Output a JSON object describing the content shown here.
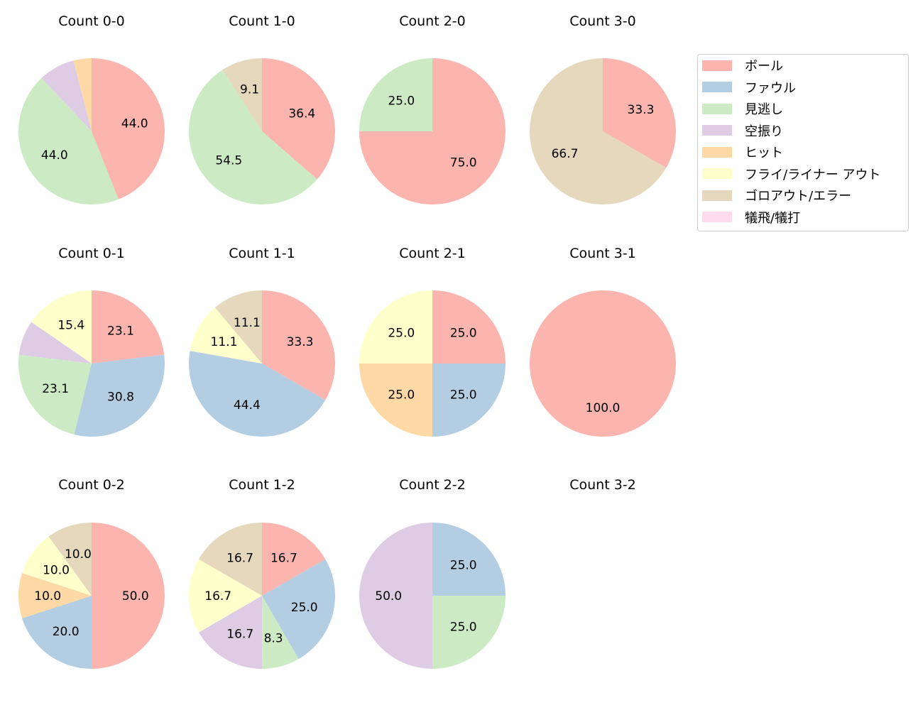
{
  "chart_data": {
    "type": "pie",
    "legend": {
      "placement": "top-right",
      "entries": [
        "ボール",
        "ファウル",
        "見逃し",
        "空振り",
        "ヒット",
        "フライ/ライナー アウト",
        "ゴロアウト/エラー",
        "犠飛/犠打"
      ]
    },
    "colors": [
      "#fbb4ae",
      "#b3cde3",
      "#ccebc5",
      "#decbe4",
      "#fed9a6",
      "#ffffcc",
      "#e5d8bd",
      "#fddaec"
    ],
    "start_angle": 90,
    "direction": "clockwise",
    "pies": [
      {
        "title": "Count 0-0",
        "values": [
          44.0,
          0,
          44.0,
          8.0,
          4.0,
          0,
          0,
          0
        ],
        "labels": [
          "44.0",
          "",
          "44.0",
          "",
          "",
          "",
          "",
          ""
        ]
      },
      {
        "title": "Count 1-0",
        "values": [
          36.4,
          0,
          54.5,
          0,
          0,
          0,
          9.1,
          0
        ],
        "labels": [
          "36.4",
          "",
          "54.5",
          "",
          "",
          "",
          "9.1",
          ""
        ]
      },
      {
        "title": "Count 2-0",
        "values": [
          75.0,
          0,
          25.0,
          0,
          0,
          0,
          0,
          0
        ],
        "labels": [
          "75.0",
          "",
          "25.0",
          "",
          "",
          "",
          "",
          ""
        ]
      },
      {
        "title": "Count 3-0",
        "values": [
          33.3,
          0,
          0,
          0,
          0,
          0,
          66.7,
          0
        ],
        "labels": [
          "33.3",
          "",
          "",
          "",
          "",
          "",
          "66.7",
          ""
        ]
      },
      {
        "title": "Count 0-1",
        "values": [
          23.1,
          30.8,
          23.1,
          7.7,
          0,
          15.4,
          0,
          0
        ],
        "labels": [
          "23.1",
          "30.8",
          "23.1",
          "",
          "",
          "15.4",
          "",
          ""
        ]
      },
      {
        "title": "Count 1-1",
        "values": [
          33.3,
          44.4,
          0,
          0,
          0,
          11.1,
          11.1,
          0
        ],
        "labels": [
          "33.3",
          "44.4",
          "",
          "",
          "",
          "11.1",
          "11.1",
          ""
        ]
      },
      {
        "title": "Count 2-1",
        "values": [
          25.0,
          25.0,
          0,
          0,
          25.0,
          25.0,
          0,
          0
        ],
        "labels": [
          "25.0",
          "25.0",
          "",
          "",
          "25.0",
          "25.0",
          "",
          ""
        ]
      },
      {
        "title": "Count 3-1",
        "values": [
          100.0,
          0,
          0,
          0,
          0,
          0,
          0,
          0
        ],
        "labels": [
          "100.0",
          "",
          "",
          "",
          "",
          "",
          "",
          ""
        ]
      },
      {
        "title": "Count 0-2",
        "values": [
          50.0,
          20.0,
          0,
          0,
          10.0,
          10.0,
          10.0,
          0
        ],
        "labels": [
          "50.0",
          "20.0",
          "",
          "",
          "10.0",
          "10.0",
          "10.0",
          ""
        ]
      },
      {
        "title": "Count 1-2",
        "values": [
          16.7,
          25.0,
          8.3,
          16.7,
          0,
          16.7,
          16.7,
          0
        ],
        "labels": [
          "16.7",
          "25.0",
          "8.3",
          "16.7",
          "",
          "16.7",
          "16.7",
          ""
        ]
      },
      {
        "title": "Count 2-2",
        "values": [
          0,
          25.0,
          25.0,
          50.0,
          0,
          0,
          0,
          0
        ],
        "labels": [
          "",
          "25.0",
          "25.0",
          "50.0",
          "",
          "",
          "",
          ""
        ]
      },
      {
        "title": "Count 3-2",
        "values": [
          0,
          0,
          0,
          0,
          0,
          0,
          0,
          0
        ],
        "labels": [
          "",
          "",
          "",
          "",
          "",
          "",
          "",
          ""
        ]
      }
    ]
  }
}
